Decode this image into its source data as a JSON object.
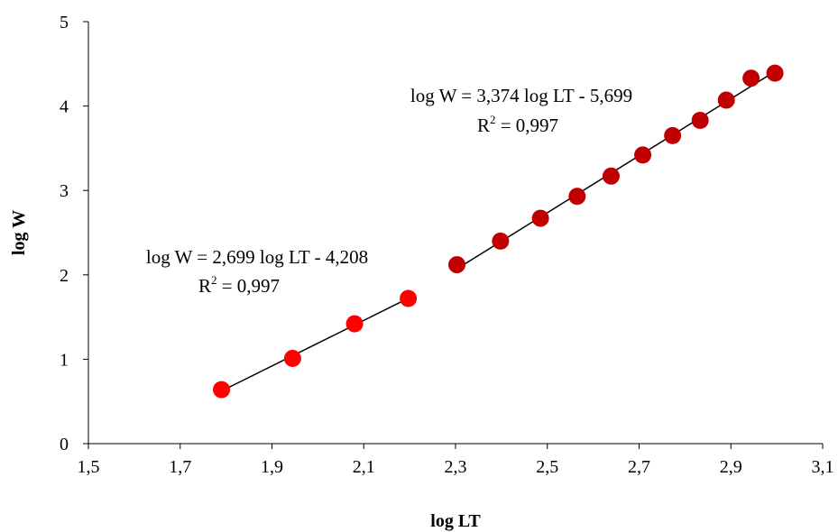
{
  "chart_data": {
    "type": "scatter",
    "title": "",
    "xlabel": "log LT",
    "ylabel": "log W",
    "xlim": [
      1.5,
      3.1
    ],
    "ylim": [
      0,
      5
    ],
    "x_ticks": [
      1.5,
      1.7,
      1.9,
      2.1,
      2.3,
      2.5,
      2.7,
      2.9,
      3.1
    ],
    "x_tick_labels": [
      "1,5",
      "1,7",
      "1,9",
      "2,1",
      "2,3",
      "2,5",
      "2,7",
      "2,9",
      "3,1"
    ],
    "y_ticks": [
      0,
      1,
      2,
      3,
      4,
      5
    ],
    "y_tick_labels": [
      "0",
      "1",
      "2",
      "3",
      "4",
      "5"
    ],
    "grid": false,
    "legend": "none",
    "series": [
      {
        "color": "#ff0000",
        "points": [
          {
            "x": 1.79,
            "y": 0.64
          },
          {
            "x": 1.945,
            "y": 1.01
          },
          {
            "x": 2.08,
            "y": 1.42
          },
          {
            "x": 2.197,
            "y": 1.72
          }
        ],
        "trendline": {
          "slope": 2.699,
          "intercept": -4.208,
          "x_range": [
            1.79,
            2.197
          ]
        },
        "equation_label": "log W = 2,699 log LT - 4,208",
        "r2_prefix": "R",
        "r2_sup": "2",
        "r2_value": " = 0,997"
      },
      {
        "color": "#c00000",
        "points": [
          {
            "x": 2.303,
            "y": 2.12
          },
          {
            "x": 2.398,
            "y": 2.4
          },
          {
            "x": 2.485,
            "y": 2.67
          },
          {
            "x": 2.565,
            "y": 2.93
          },
          {
            "x": 2.639,
            "y": 3.17
          },
          {
            "x": 2.708,
            "y": 3.42
          },
          {
            "x": 2.773,
            "y": 3.65
          },
          {
            "x": 2.833,
            "y": 3.83
          },
          {
            "x": 2.89,
            "y": 4.07
          },
          {
            "x": 2.944,
            "y": 4.33
          },
          {
            "x": 2.996,
            "y": 4.39
          }
        ],
        "trendline": {
          "slope": 3.374,
          "intercept": -5.699,
          "x_range": [
            2.303,
            2.996
          ]
        },
        "equation_label": "log W = 3,374 log LT - 5,699",
        "r2_prefix": "R",
        "r2_sup": "2",
        "r2_value": " = 0,997"
      }
    ]
  }
}
